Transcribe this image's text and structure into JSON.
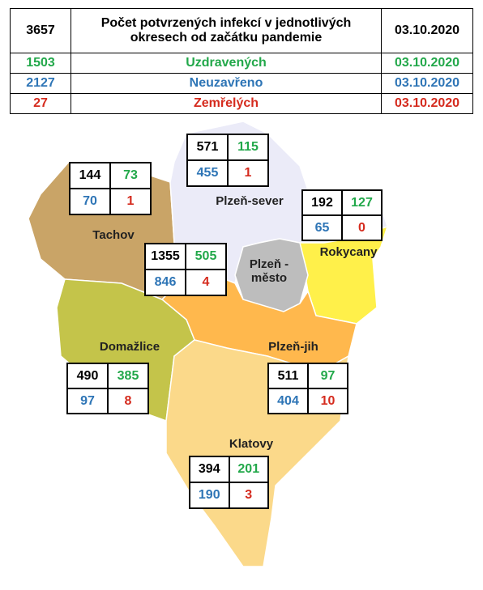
{
  "summary": {
    "rows": [
      [
        "3657",
        "Počet potvrzených infekcí v jednotlivých okresech od začátku pandemie",
        "03.10.2020"
      ],
      [
        "1503",
        "Uzdravených",
        "03.10.2020"
      ],
      [
        "2127",
        "Neuzavřeno",
        "03.10.2020"
      ],
      [
        "27",
        "Zemřelých",
        "03.10.2020"
      ]
    ]
  },
  "districts": [
    {
      "name": "Tachov",
      "confirmed": 144,
      "recovered": 73,
      "active": 70,
      "deaths": 1
    },
    {
      "name": "Plzeň-sever",
      "confirmed": 571,
      "recovered": 115,
      "active": 455,
      "deaths": 1
    },
    {
      "name": "Rokycany",
      "confirmed": 192,
      "recovered": 127,
      "active": 65,
      "deaths": 0
    },
    {
      "name": "Plzeň -město",
      "confirmed": 1355,
      "recovered": 505,
      "active": 846,
      "deaths": 4
    },
    {
      "name": "Domažlice",
      "confirmed": 490,
      "recovered": 385,
      "active": 97,
      "deaths": 8
    },
    {
      "name": "Plzeň-jih",
      "confirmed": 511,
      "recovered": 97,
      "active": 404,
      "deaths": 10
    },
    {
      "name": "Klatovy",
      "confirmed": 394,
      "recovered": 201,
      "active": 190,
      "deaths": 3
    }
  ]
}
